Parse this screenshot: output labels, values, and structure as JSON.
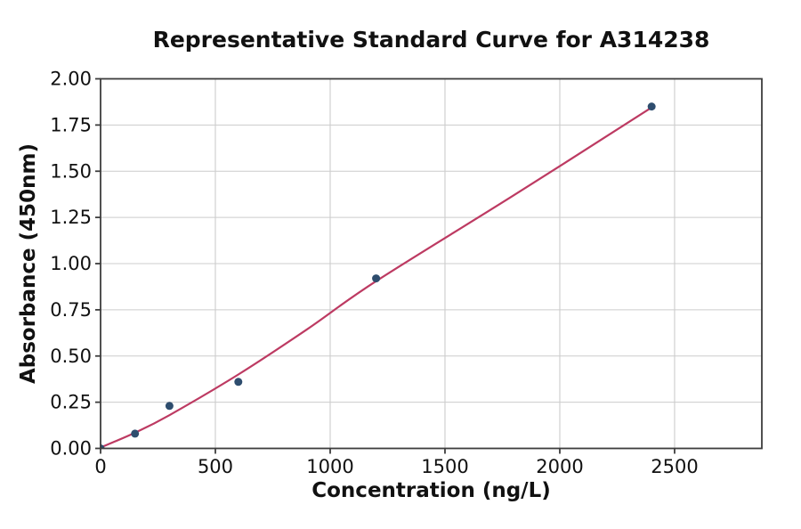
{
  "chart_data": {
    "type": "scatter",
    "title": "Representative Standard Curve for A314238",
    "xlabel": "Concentration (ng/L)",
    "ylabel": "Absorbance (450nm)",
    "xlim": [
      0,
      2880
    ],
    "ylim": [
      0,
      2.0
    ],
    "grid": true,
    "legend": "none",
    "x_tick_values": [
      0,
      500,
      1000,
      1500,
      2000,
      2500
    ],
    "x_tick_labels": [
      "0",
      "500",
      "1000",
      "1500",
      "2000",
      "2500"
    ],
    "y_tick_values": [
      0,
      0.25,
      0.5,
      0.75,
      1.0,
      1.25,
      1.5,
      1.75,
      2.0
    ],
    "y_tick_labels": [
      "0.00",
      "0.25",
      "0.50",
      "0.75",
      "1.00",
      "1.25",
      "1.50",
      "1.75",
      "2.00"
    ],
    "points": {
      "x": [
        0,
        150,
        300,
        600,
        1200,
        2400
      ],
      "y": [
        0.0,
        0.08,
        0.23,
        0.36,
        0.92,
        1.85
      ]
    },
    "fit_curve": [
      [
        0,
        0.005
      ],
      [
        150,
        0.085
      ],
      [
        300,
        0.18
      ],
      [
        600,
        0.4
      ],
      [
        900,
        0.645
      ],
      [
        1200,
        0.905
      ],
      [
        1800,
        1.37
      ],
      [
        2400,
        1.845
      ]
    ],
    "colors": {
      "curve": "#bd3a62",
      "marker": "#2e4d6e",
      "grid": "#cccccc",
      "spine": "#3d3d3d",
      "text": "#111111",
      "background": "#ffffff"
    }
  }
}
